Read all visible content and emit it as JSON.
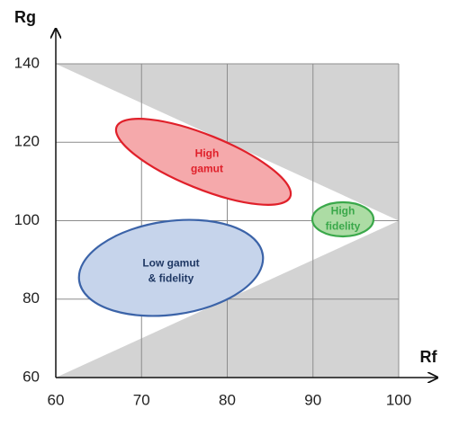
{
  "chart_data": {
    "type": "region",
    "x_label": "Rf",
    "y_label": "Rg",
    "xlim": [
      60,
      100
    ],
    "xticks": [
      60,
      70,
      80,
      90,
      100
    ],
    "ylim": [
      60,
      140
    ],
    "yticks": [
      60,
      80,
      100,
      120,
      140
    ],
    "grid": true,
    "regions": [
      {
        "label": [
          "High",
          "gamut"
        ],
        "color": "#e0202a",
        "fill": "#f5a9ab"
      },
      {
        "label": [
          "High",
          "fidelity"
        ],
        "color": "#3aa84a",
        "fill": "#acdca4"
      },
      {
        "label": [
          "Low gamut",
          "& fidelity"
        ],
        "color": "#3b63a8",
        "fill": "#c6d4eb"
      }
    ]
  }
}
